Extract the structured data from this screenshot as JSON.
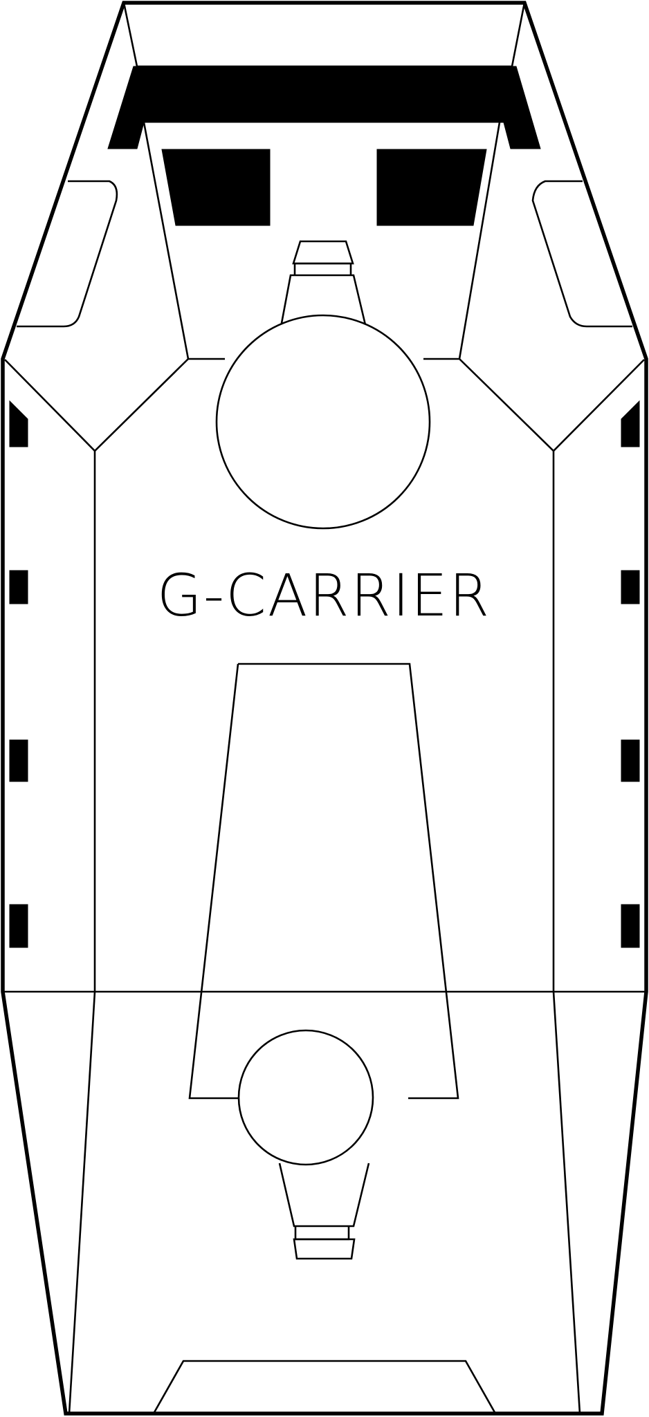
{
  "vehicle": {
    "label": "G-CARRIER"
  },
  "colors": {
    "line": "#000000",
    "background": "#ffffff",
    "fill": "#000000"
  }
}
